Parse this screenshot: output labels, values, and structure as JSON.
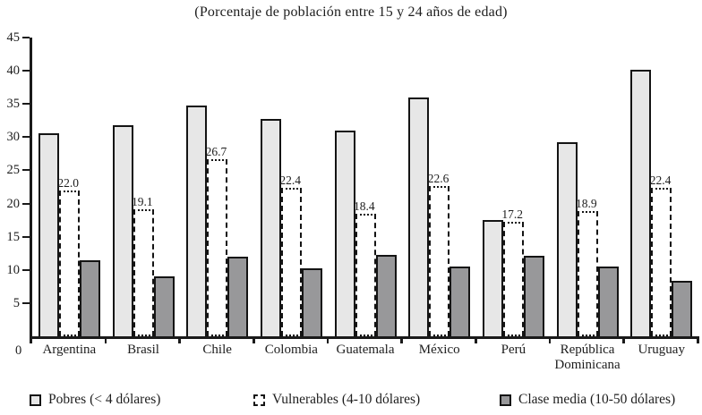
{
  "title": "(Porcentaje de población entre 15 y 24 años de edad)",
  "colors": {
    "pobres_fill": "#e7e7e7",
    "vulnerables_fill": "#ffffff",
    "clase_media_fill": "#98989a",
    "axis_and_text": "#1a1a1a"
  },
  "y_axis": {
    "ticks": [
      45,
      40,
      35,
      30,
      25,
      20,
      15,
      10,
      5
    ],
    "zero_label": "0"
  },
  "chart_data": {
    "type": "bar",
    "title": "(Porcentaje de población entre 15 y 24 años de edad)",
    "categories": [
      "Argentina",
      "Brasil",
      "Chile",
      "Colombia",
      "Guatemala",
      "México",
      "Perú",
      "República Dominicana",
      "Uruguay"
    ],
    "series": [
      {
        "name": "Pobres (< 4 dólares)",
        "swatch": "pobres",
        "values": [
          30.6,
          31.8,
          34.7,
          32.8,
          31.0,
          36.0,
          17.5,
          29.3,
          40.2
        ],
        "data_labels": false
      },
      {
        "name": "Vulnerables (4-10 dólares)",
        "swatch": "vulnerables",
        "values": [
          22.0,
          19.1,
          26.7,
          22.4,
          18.4,
          22.6,
          17.2,
          18.9,
          22.4
        ],
        "data_labels": true
      },
      {
        "name": "Clase media (10-50 dólares)",
        "swatch": "clase_media",
        "values": [
          11.5,
          9.1,
          12.0,
          10.2,
          12.2,
          10.5,
          12.1,
          10.5,
          8.3
        ],
        "data_labels": false
      }
    ],
    "xlabel": "",
    "ylabel": "",
    "ylim": [
      0,
      45
    ],
    "grid": false,
    "legend_position": "bottom"
  },
  "legend_x_positions": [
    33,
    283,
    558
  ]
}
